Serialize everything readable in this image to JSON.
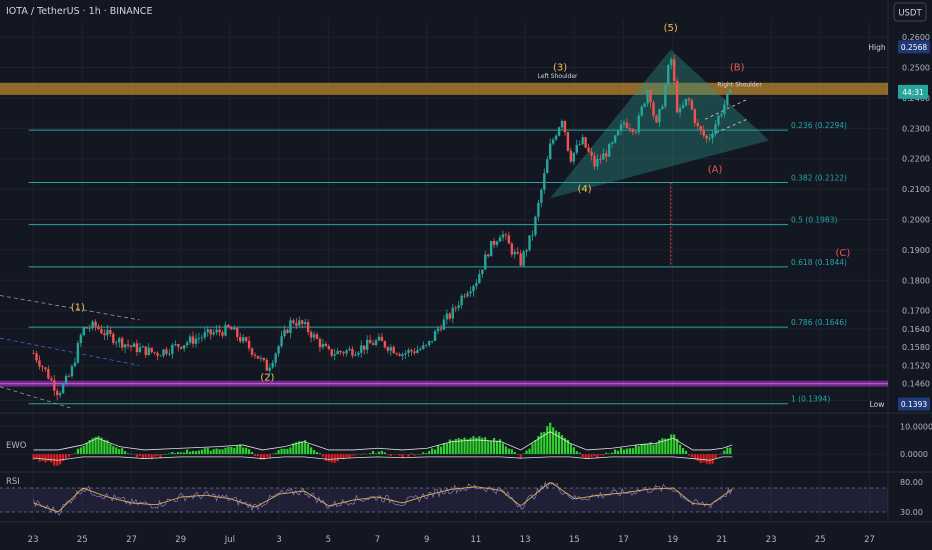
{
  "header": {
    "symbol": "IOTA / TetherUS · 1h · BINANCE",
    "currency": "USDT"
  },
  "colors": {
    "background": "#131722",
    "grid": "#1e222d",
    "up": "#26a69a",
    "down": "#ef5350",
    "fib": "#26a6a6",
    "resistance_zone": "#b8862f",
    "support_line": "#b23fd1",
    "wave_label": "#f0c050",
    "corrective_label": "#ef5350",
    "ewo_up": "#2fd12f",
    "ewo_down": "#e02020",
    "rsi_line": "#8a7ad8",
    "rsi_ma": "#e0b040"
  },
  "chart_data": [
    {
      "type": "candlestick",
      "panel": "price",
      "x_ticks": [
        "23",
        "25",
        "27",
        "29",
        "Jul",
        "3",
        "5",
        "7",
        "9",
        "11",
        "13",
        "15",
        "17",
        "19",
        "21",
        "23",
        "25",
        "27"
      ],
      "y_ticks": [
        "0.2600",
        "0.2500",
        "0.2400",
        "0.2300",
        "0.2200",
        "0.2100",
        "0.2000",
        "0.1900",
        "0.1800",
        "0.1700",
        "0.1640",
        "0.1580",
        "0.1520",
        "0.1460",
        "0.1405"
      ],
      "ylim": [
        0.137,
        0.264
      ],
      "price_path": [
        {
          "x": 0.0,
          "y": 0.156
        },
        {
          "x": 0.5,
          "y": 0.15
        },
        {
          "x": 1.0,
          "y": 0.143
        },
        {
          "x": 1.5,
          "y": 0.149
        },
        {
          "x": 2.0,
          "y": 0.164
        },
        {
          "x": 2.5,
          "y": 0.165
        },
        {
          "x": 3.0,
          "y": 0.162
        },
        {
          "x": 4.0,
          "y": 0.158
        },
        {
          "x": 5.0,
          "y": 0.156
        },
        {
          "x": 6.0,
          "y": 0.159
        },
        {
          "x": 7.0,
          "y": 0.162
        },
        {
          "x": 8.0,
          "y": 0.164
        },
        {
          "x": 9.0,
          "y": 0.156
        },
        {
          "x": 9.5,
          "y": 0.151
        },
        {
          "x": 10.0,
          "y": 0.159
        },
        {
          "x": 10.5,
          "y": 0.167
        },
        {
          "x": 11.0,
          "y": 0.165
        },
        {
          "x": 12.0,
          "y": 0.156
        },
        {
          "x": 13.0,
          "y": 0.157
        },
        {
          "x": 14.0,
          "y": 0.16
        },
        {
          "x": 15.0,
          "y": 0.156
        },
        {
          "x": 16.0,
          "y": 0.158
        },
        {
          "x": 16.5,
          "y": 0.165
        },
        {
          "x": 17.0,
          "y": 0.169
        },
        {
          "x": 17.5,
          "y": 0.176
        },
        {
          "x": 18.0,
          "y": 0.18
        },
        {
          "x": 18.5,
          "y": 0.19
        },
        {
          "x": 19.0,
          "y": 0.196
        },
        {
          "x": 19.5,
          "y": 0.189
        },
        {
          "x": 19.8,
          "y": 0.186
        },
        {
          "x": 20.3,
          "y": 0.196
        },
        {
          "x": 20.7,
          "y": 0.212
        },
        {
          "x": 21.0,
          "y": 0.224
        },
        {
          "x": 21.5,
          "y": 0.234
        },
        {
          "x": 21.8,
          "y": 0.22
        },
        {
          "x": 22.3,
          "y": 0.226
        },
        {
          "x": 22.8,
          "y": 0.218
        },
        {
          "x": 23.5,
          "y": 0.224
        },
        {
          "x": 24.0,
          "y": 0.232
        },
        {
          "x": 24.5,
          "y": 0.23
        },
        {
          "x": 25.0,
          "y": 0.244
        },
        {
          "x": 25.3,
          "y": 0.23
        },
        {
          "x": 25.6,
          "y": 0.24
        },
        {
          "x": 25.9,
          "y": 0.254
        },
        {
          "x": 26.2,
          "y": 0.234
        },
        {
          "x": 26.6,
          "y": 0.24
        },
        {
          "x": 27.0,
          "y": 0.23
        },
        {
          "x": 27.4,
          "y": 0.226
        },
        {
          "x": 27.8,
          "y": 0.233
        },
        {
          "x": 28.2,
          "y": 0.24
        },
        {
          "x": 28.4,
          "y": 0.242
        }
      ],
      "fib_levels": [
        {
          "label": "0.236 (0.2294)",
          "value": 0.2294
        },
        {
          "label": "0.382 (0.2122)",
          "value": 0.2122
        },
        {
          "label": "0.5 (0.1983)",
          "value": 0.1983
        },
        {
          "label": "0.618 (0.1844)",
          "value": 0.1844
        },
        {
          "label": "0.786 (0.1646)",
          "value": 0.1646
        },
        {
          "label": "1 (0.1394)",
          "value": 0.1394
        }
      ],
      "resistance_zone": [
        0.241,
        0.245
      ],
      "support_level": 0.146,
      "wave_labels": [
        {
          "text": "(1)",
          "x": 1.8,
          "y": 0.17,
          "kind": "impulse"
        },
        {
          "text": "(2)",
          "x": 9.5,
          "y": 0.147,
          "kind": "impulse"
        },
        {
          "text": "(3)",
          "x": 21.4,
          "y": 0.249,
          "kind": "impulse"
        },
        {
          "text": "(4)",
          "x": 22.4,
          "y": 0.209,
          "kind": "impulse"
        },
        {
          "text": "(5)",
          "x": 25.9,
          "y": 0.262,
          "kind": "impulse"
        },
        {
          "text": "(A)",
          "x": 27.7,
          "y": 0.2155,
          "kind": "corrective"
        },
        {
          "text": "(B)",
          "x": 28.6,
          "y": 0.249,
          "kind": "corrective"
        },
        {
          "text": "(C)",
          "x": 32.9,
          "y": 0.188,
          "kind": "corrective"
        }
      ],
      "pattern_labels": [
        {
          "text": "Left Shoulder",
          "x": 21.3,
          "y": 0.2465
        },
        {
          "text": "Right Shoulder",
          "x": 28.7,
          "y": 0.2438
        }
      ],
      "badges": [
        {
          "text": "High",
          "value": "0.2568",
          "y": 0.2568
        },
        {
          "text": "Low",
          "value": "0.1393",
          "y": 0.1393
        }
      ],
      "current_price": {
        "value": 0.242,
        "label": "44:31"
      }
    },
    {
      "type": "area",
      "panel": "EWO",
      "title": "EWO",
      "y_ticks": [
        "10.0000",
        "0.0000"
      ],
      "ylim": [
        -5,
        13
      ],
      "series": [
        {
          "x": 0,
          "y": -1.5
        },
        {
          "x": 1,
          "y": -4
        },
        {
          "x": 2,
          "y": 3
        },
        {
          "x": 2.6,
          "y": 7
        },
        {
          "x": 3.5,
          "y": 2
        },
        {
          "x": 4.5,
          "y": -2
        },
        {
          "x": 6,
          "y": 1
        },
        {
          "x": 7.5,
          "y": 2
        },
        {
          "x": 8.5,
          "y": 3
        },
        {
          "x": 9.3,
          "y": -2
        },
        {
          "x": 10.2,
          "y": 2
        },
        {
          "x": 11,
          "y": 5
        },
        {
          "x": 12,
          "y": -3
        },
        {
          "x": 13,
          "y": -1
        },
        {
          "x": 14,
          "y": 1
        },
        {
          "x": 15,
          "y": -1
        },
        {
          "x": 16,
          "y": 1
        },
        {
          "x": 17,
          "y": 5
        },
        {
          "x": 18,
          "y": 6
        },
        {
          "x": 19,
          "y": 5
        },
        {
          "x": 19.8,
          "y": -1.5
        },
        {
          "x": 21,
          "y": 11
        },
        {
          "x": 21.8,
          "y": 4
        },
        {
          "x": 22.5,
          "y": -2
        },
        {
          "x": 23.5,
          "y": 1
        },
        {
          "x": 24.5,
          "y": 3
        },
        {
          "x": 25.3,
          "y": 4
        },
        {
          "x": 26,
          "y": 7
        },
        {
          "x": 26.8,
          "y": -2
        },
        {
          "x": 27.5,
          "y": -4
        },
        {
          "x": 28,
          "y": 1
        },
        {
          "x": 28.4,
          "y": 3
        }
      ]
    },
    {
      "type": "line",
      "panel": "RSI",
      "title": "RSI",
      "y_ticks": [
        "80.00",
        "30.00"
      ],
      "ylim": [
        20,
        90
      ],
      "series": [
        {
          "x": 0,
          "y": 45
        },
        {
          "x": 1,
          "y": 30
        },
        {
          "x": 2,
          "y": 70
        },
        {
          "x": 3,
          "y": 55
        },
        {
          "x": 4,
          "y": 45
        },
        {
          "x": 5,
          "y": 42
        },
        {
          "x": 6,
          "y": 55
        },
        {
          "x": 7,
          "y": 58
        },
        {
          "x": 8,
          "y": 52
        },
        {
          "x": 9,
          "y": 38
        },
        {
          "x": 10,
          "y": 60
        },
        {
          "x": 11,
          "y": 65
        },
        {
          "x": 12,
          "y": 40
        },
        {
          "x": 13,
          "y": 50
        },
        {
          "x": 14,
          "y": 55
        },
        {
          "x": 15,
          "y": 45
        },
        {
          "x": 16,
          "y": 58
        },
        {
          "x": 17,
          "y": 68
        },
        {
          "x": 18,
          "y": 72
        },
        {
          "x": 19,
          "y": 66
        },
        {
          "x": 19.8,
          "y": 40
        },
        {
          "x": 21,
          "y": 80
        },
        {
          "x": 22,
          "y": 52
        },
        {
          "x": 23,
          "y": 58
        },
        {
          "x": 24,
          "y": 62
        },
        {
          "x": 25,
          "y": 68
        },
        {
          "x": 26,
          "y": 70
        },
        {
          "x": 26.8,
          "y": 44
        },
        {
          "x": 27.5,
          "y": 42
        },
        {
          "x": 28.4,
          "y": 68
        }
      ],
      "levels": [
        70,
        30
      ]
    }
  ]
}
